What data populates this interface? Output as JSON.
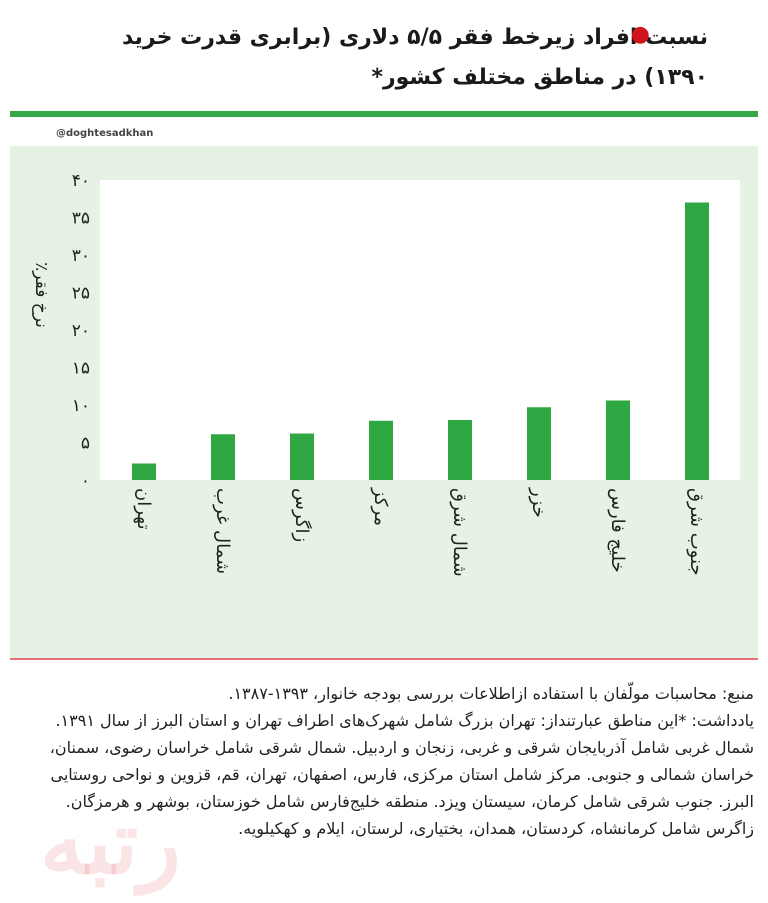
{
  "header": {
    "title": "نسبت افراد زیرخط فقر ۵/۵ دلاری (برابری قدرت خرید ۱۳۹۰) در مناطق مختلف کشور*",
    "bullet_color": "#d0141c"
  },
  "watermark": {
    "handle": "@doghtesadkhan",
    "logo_text": "رتبه"
  },
  "colors": {
    "bar": "#2fa843",
    "panel": "#e6f2e4",
    "accent_line": "#37a84a"
  },
  "chart_data": {
    "type": "bar",
    "ylabel": "نرخ فقر٪",
    "ylim": [
      0,
      40
    ],
    "yticks": [
      0,
      5,
      10,
      15,
      20,
      25,
      30,
      35,
      40
    ],
    "ytick_labels": [
      "۰",
      "۵",
      "۱۰",
      "۱۵",
      "۲۰",
      "۲۵",
      "۳۰",
      "۳۵",
      "۴۰"
    ],
    "categories": [
      "تهران",
      "شمال غرب",
      "زاگرس",
      "مرکز",
      "شمال شرق",
      "خزر",
      "خلیج فارس",
      "جنوب شرق"
    ],
    "values": [
      2.2,
      6.1,
      6.2,
      7.9,
      8.0,
      9.7,
      10.6,
      37.0
    ],
    "grid": false
  },
  "footer": {
    "source": "منبع: محاسبات مولّفان با استفاده ازاطلاعات بررسی بودجه خانوار، ۱۳۹۳-۱۳۸۷.",
    "note": "یادداشت: *این مناطق عبارتنداز: تهران بزرگ شامل شهرک‌های اطراف تهران و استان البرز از سال ۱۳۹۱. شمال غربی شامل آذربایجان شرقی و غربی، زنجان و اردبیل. شمال شرقی شامل خراسان رضوی، سمنان، خراسان شمالی و جنوبی. مرکز شامل استان مرکزی، فارس، اصفهان، تهران، قم، قزوین و نواحی روستایی البرز. جنوب شرقی شامل کرمان، سیستان ویزد. منطقه خلیج‌فارس شامل خوزستان، بوشهر و هرمزگان. زاگرس شامل کرمانشاه، کردستان، همدان، بختیاری، لرستان، ایلام و کهکیلویه."
  }
}
